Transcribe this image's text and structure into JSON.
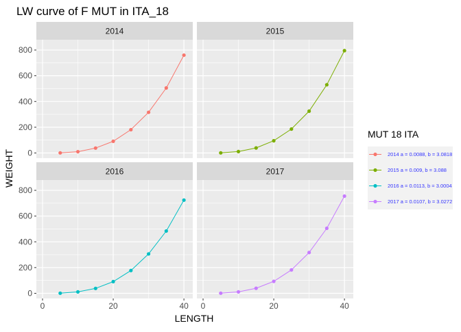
{
  "chart_data": {
    "type": "line",
    "title": "LW curve of F MUT in ITA_18",
    "xlabel": "LENGTH",
    "ylabel": "WEIGHT",
    "x": [
      5,
      10,
      15,
      20,
      25,
      30,
      35,
      40
    ],
    "xlim": [
      -1.75,
      42.5
    ],
    "ylim": [
      -40,
      880
    ],
    "xticks": [
      0,
      20,
      40
    ],
    "yticks": [
      0,
      200,
      400,
      600,
      800
    ],
    "grid": true,
    "background": "#EBEBEB",
    "strip_background": "#D9D9D9",
    "legend": {
      "title": "MUT 18 ITA",
      "position": "right"
    },
    "series": [
      {
        "name": "2014 a = 0.0088, b = 3.0818",
        "panel": "2014",
        "color": "#F8766D",
        "values": [
          1,
          10,
          38,
          91,
          181,
          316,
          505,
          760
        ]
      },
      {
        "name": "2015 a = 0.009, b = 3.088",
        "panel": "2015",
        "color": "#7CAE00",
        "values": [
          1,
          11,
          39,
          95,
          186,
          325,
          530,
          795
        ]
      },
      {
        "name": "2016 a = 0.0113, b = 3.0004",
        "panel": "2016",
        "color": "#00BFC4",
        "values": [
          1,
          11,
          38,
          91,
          177,
          306,
          484,
          724
        ]
      },
      {
        "name": "2017 a = 0.0107, b = 3.0272",
        "panel": "2017",
        "color": "#C77CFF",
        "values": [
          1,
          11,
          39,
          93,
          182,
          317,
          505,
          755
        ]
      }
    ]
  }
}
